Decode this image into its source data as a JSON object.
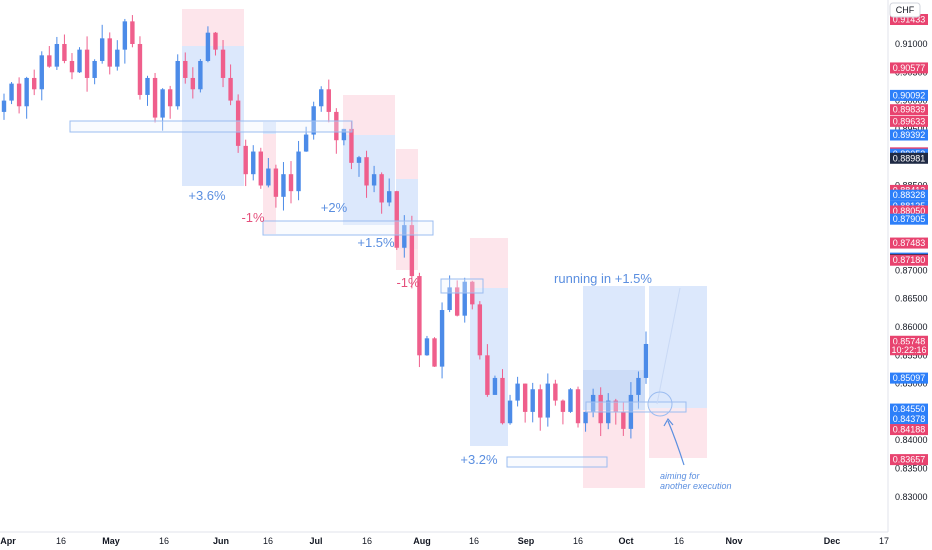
{
  "colors": {
    "up": "#4c8be8",
    "down": "#ef5f8c",
    "profit_zone": "#d6e4fb",
    "loss_zone": "#fde0e7",
    "entry_box": "#9bbcf0",
    "annotation_blue": "#5b8fe0",
    "annotation_red": "#e5507c",
    "label_blue": "#2d7ff9",
    "label_red": "#e8436f",
    "label_dark": "#1f2a44"
  },
  "chart_data": {
    "type": "candlestick",
    "currency": "CHF",
    "x_tick_labels": [
      "Apr",
      "16",
      "May",
      "16",
      "Jun",
      "16",
      "Jul",
      "16",
      "Aug",
      "16",
      "Sep",
      "16",
      "Oct",
      "16",
      "Nov",
      "Dec",
      "17"
    ],
    "y_tick_labels": [
      "0.91000",
      "0.90500",
      "0.90000",
      "0.89500",
      "0.89000",
      "0.88500",
      "0.88000",
      "0.87500",
      "0.87000",
      "0.86500",
      "0.86000",
      "0.85500",
      "0.85000",
      "0.84500",
      "0.84000",
      "0.83500",
      "0.83000"
    ],
    "ylim": [
      0.8275,
      0.9175
    ],
    "y_ticks": [
      0.91,
      0.905,
      0.9,
      0.895,
      0.89,
      0.885,
      0.88,
      0.875,
      0.87,
      0.865,
      0.86,
      0.855,
      0.85,
      0.845,
      0.84,
      0.835,
      0.83
    ],
    "price_labels": [
      {
        "text": "0.91433",
        "value": 0.91433,
        "color": "red"
      },
      {
        "text": "0.90577",
        "value": 0.90577,
        "color": "red"
      },
      {
        "text": "0.90092",
        "value": 0.90092,
        "color": "blue"
      },
      {
        "text": "0.89839",
        "value": 0.89839,
        "color": "red"
      },
      {
        "text": "0.89633",
        "value": 0.89633,
        "color": "red"
      },
      {
        "text": "0.89392",
        "value": 0.89392,
        "color": "blue"
      },
      {
        "text": "0.89077",
        "value": 0.89077,
        "color": "red"
      },
      {
        "text": "0.89053",
        "value": 0.89053,
        "color": "blue"
      },
      {
        "text": "0.88981",
        "value": 0.88981,
        "color": "blue"
      },
      {
        "text": "0.88413",
        "value": 0.88413,
        "color": "red"
      },
      {
        "text": "0.88328",
        "value": 0.88328,
        "color": "blue"
      },
      {
        "text": "0.88135",
        "value": 0.88135,
        "color": "blue"
      },
      {
        "text": "0.88050",
        "value": 0.8805,
        "color": "red"
      },
      {
        "text": "0.87905",
        "value": 0.87905,
        "color": "blue"
      },
      {
        "text": "0.87483",
        "value": 0.87483,
        "color": "red"
      },
      {
        "text": "0.87217",
        "value": 0.87217,
        "color": "blue"
      },
      {
        "text": "0.87194",
        "value": 0.87194,
        "color": "blue"
      },
      {
        "text": "0.87180",
        "value": 0.8718,
        "color": "red"
      },
      {
        "text": "0.85748",
        "value": 0.85748,
        "color": "red"
      },
      {
        "text": "10:22:16",
        "value": 0.85598,
        "color": "red"
      },
      {
        "text": "0.85097",
        "value": 0.85097,
        "color": "blue"
      },
      {
        "text": "0.84550",
        "value": 0.8455,
        "color": "blue"
      },
      {
        "text": "0.84378",
        "value": 0.84378,
        "color": "blue"
      },
      {
        "text": "0.84188",
        "value": 0.84188,
        "color": "red"
      },
      {
        "text": "0.83657",
        "value": 0.83657,
        "color": "red"
      }
    ],
    "annotations": [
      {
        "text": "+3.6%",
        "color": "blue"
      },
      {
        "text": "-1%",
        "color": "red"
      },
      {
        "text": "+2%",
        "color": "blue"
      },
      {
        "text": "+1.5%",
        "color": "blue"
      },
      {
        "text": "-1%",
        "color": "red"
      },
      {
        "text": "+3.2%",
        "color": "blue"
      },
      {
        "text": "running in +1.5%",
        "color": "blue"
      }
    ],
    "note_lines": [
      "aiming for",
      "another execution"
    ],
    "candle_close_path": [
      0.9,
      0.903,
      0.899,
      0.904,
      0.902,
      0.908,
      0.906,
      0.91,
      0.907,
      0.905,
      0.909,
      0.904,
      0.907,
      0.911,
      0.906,
      0.909,
      0.914,
      0.91,
      0.901,
      0.904,
      0.897,
      0.902,
      0.899,
      0.907,
      0.904,
      0.902,
      0.907,
      0.912,
      0.909,
      0.904,
      0.9,
      0.892,
      0.887,
      0.891,
      0.885,
      0.888,
      0.883,
      0.887,
      0.884,
      0.891,
      0.894,
      0.899,
      0.902,
      0.898,
      0.893,
      0.895,
      0.889,
      0.89,
      0.885,
      0.887,
      0.882,
      0.884,
      0.874,
      0.878,
      0.869,
      0.855,
      0.858,
      0.853,
      0.863,
      0.867,
      0.862,
      0.868,
      0.864,
      0.855,
      0.848,
      0.851,
      0.843,
      0.847,
      0.85,
      0.845,
      0.849,
      0.844,
      0.85,
      0.847,
      0.845,
      0.849,
      0.843,
      0.845,
      0.848,
      0.843,
      0.847,
      0.845,
      0.842,
      0.848,
      0.851,
      0.857
    ]
  }
}
